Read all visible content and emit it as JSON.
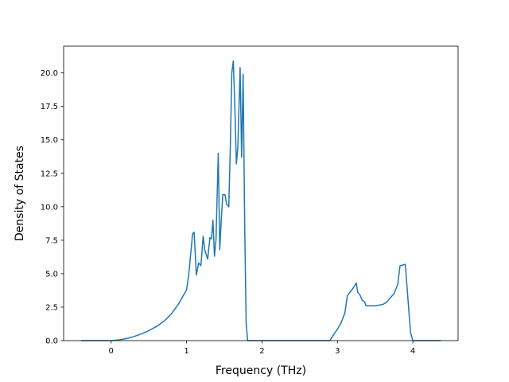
{
  "chart_data": {
    "type": "line",
    "title": "",
    "xlabel": "Frequency (THz)",
    "ylabel": "Density of States",
    "xlim": [
      -0.63,
      4.6
    ],
    "ylim": [
      0,
      22
    ],
    "grid": false,
    "legend": "none",
    "x_ticks": [
      {
        "value": 0,
        "label": "0"
      },
      {
        "value": 1,
        "label": "1"
      },
      {
        "value": 2,
        "label": "2"
      },
      {
        "value": 3,
        "label": "3"
      },
      {
        "value": 4,
        "label": "4"
      }
    ],
    "y_ticks": [
      {
        "value": 0,
        "label": "0.0"
      },
      {
        "value": 2.5,
        "label": "2.5"
      },
      {
        "value": 5,
        "label": "5.0"
      },
      {
        "value": 7.5,
        "label": "7.5"
      },
      {
        "value": 10,
        "label": "10.0"
      },
      {
        "value": 12.5,
        "label": "12.5"
      },
      {
        "value": 15,
        "label": "15.0"
      },
      {
        "value": 17.5,
        "label": "17.5"
      },
      {
        "value": 20,
        "label": "20.0"
      }
    ],
    "series": [
      {
        "color": "#1f77b4",
        "x": [
          -0.4,
          0.0,
          0.1,
          0.2,
          0.3,
          0.4,
          0.5,
          0.6,
          0.7,
          0.8,
          0.9,
          0.95,
          1.0,
          1.03,
          1.06,
          1.08,
          1.1,
          1.13,
          1.16,
          1.19,
          1.22,
          1.24,
          1.28,
          1.31,
          1.33,
          1.35,
          1.37,
          1.39,
          1.42,
          1.44,
          1.46,
          1.48,
          1.51,
          1.53,
          1.56,
          1.58,
          1.6,
          1.62,
          1.64,
          1.66,
          1.68,
          1.71,
          1.73,
          1.75,
          1.77,
          1.79,
          1.81,
          1.83,
          1.86,
          1.9,
          2.5,
          2.9,
          2.95,
          3.0,
          3.05,
          3.1,
          3.13,
          3.15,
          3.2,
          3.25,
          3.27,
          3.3,
          3.33,
          3.36,
          3.38,
          3.4,
          3.5,
          3.6,
          3.65,
          3.7,
          3.75,
          3.8,
          3.83,
          3.87,
          3.9,
          3.93,
          3.95,
          3.97,
          4.0,
          4.37
        ],
        "y": [
          0.0,
          0.0,
          0.05,
          0.15,
          0.3,
          0.5,
          0.75,
          1.05,
          1.45,
          2.0,
          2.8,
          3.3,
          3.8,
          5.0,
          6.8,
          8.0,
          8.1,
          4.9,
          5.8,
          5.6,
          7.8,
          6.8,
          6.1,
          7.7,
          7.6,
          9.0,
          6.3,
          7.5,
          14.0,
          6.8,
          9.0,
          10.9,
          10.9,
          10.2,
          10.0,
          14.5,
          20.0,
          20.9,
          17.5,
          13.2,
          14.5,
          20.4,
          13.7,
          19.9,
          9.0,
          1.3,
          0.0,
          0.0,
          0.0,
          0.0,
          0.0,
          0.0,
          0.45,
          0.85,
          1.35,
          2.1,
          3.3,
          3.5,
          3.85,
          4.3,
          3.6,
          3.4,
          3.0,
          2.9,
          2.6,
          2.6,
          2.6,
          2.7,
          2.85,
          3.2,
          3.5,
          4.2,
          5.6,
          5.65,
          5.7,
          3.5,
          2.0,
          0.6,
          0.0,
          0.0
        ]
      }
    ]
  }
}
